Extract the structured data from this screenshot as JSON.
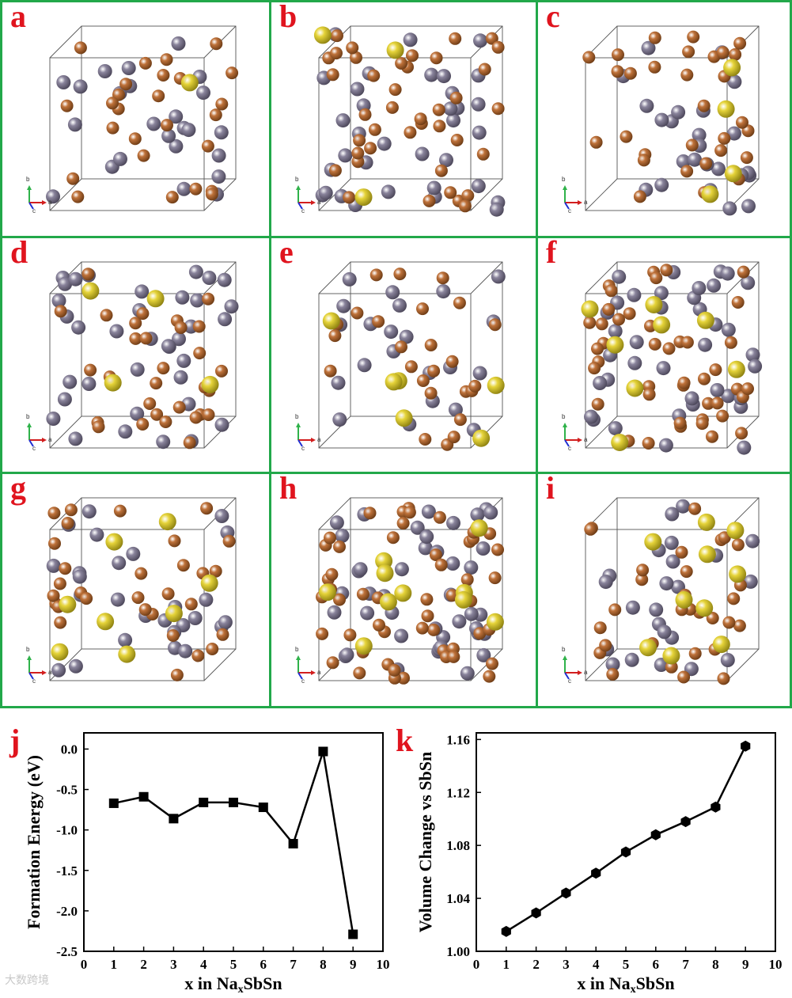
{
  "panels": [
    {
      "label": "a"
    },
    {
      "label": "b"
    },
    {
      "label": "c"
    },
    {
      "label": "d"
    },
    {
      "label": "e"
    },
    {
      "label": "f"
    },
    {
      "label": "g"
    },
    {
      "label": "h"
    },
    {
      "label": "i"
    }
  ],
  "axes_triad": {
    "b": "b",
    "a": "a",
    "c": "c"
  },
  "colors": {
    "frame": "#22a84a",
    "label": "#e0141e",
    "sb": "#c0733b",
    "sn": "#8a849c",
    "na": "#e6d43a"
  },
  "watermark": "大数跨境",
  "chart_data": [
    {
      "label": "j",
      "type": "line",
      "x": [
        1,
        2,
        3,
        4,
        5,
        6,
        7,
        8,
        9
      ],
      "values": [
        -0.67,
        -0.59,
        -0.86,
        -0.66,
        -0.66,
        -0.72,
        -1.17,
        -0.03,
        -2.29
      ],
      "marker": "square",
      "xlabel_pre": "x in Na",
      "xlabel_sub": "x",
      "xlabel_post": "SbSn",
      "ylabel": "Formation Energy (eV)",
      "xlim": [
        0,
        10
      ],
      "ylim": [
        -2.5,
        0.2
      ],
      "xticks": [
        "0",
        "1",
        "2",
        "3",
        "4",
        "5",
        "6",
        "7",
        "8",
        "9",
        "10"
      ],
      "yticks": [
        "0.0",
        "-0.5",
        "-1.0",
        "-1.5",
        "-2.0",
        "-2.5"
      ],
      "ytick_values": [
        0.0,
        -0.5,
        -1.0,
        -1.5,
        -2.0,
        -2.5
      ]
    },
    {
      "label": "k",
      "type": "line",
      "x": [
        1,
        2,
        3,
        4,
        5,
        6,
        7,
        8,
        9
      ],
      "values": [
        1.015,
        1.029,
        1.044,
        1.059,
        1.075,
        1.088,
        1.098,
        1.109,
        1.155
      ],
      "marker": "hexagon",
      "xlabel_pre": "x in Na",
      "xlabel_sub": "x",
      "xlabel_post": "SbSn",
      "ylabel": "Volume Change vs SbSn",
      "xlim": [
        0,
        10
      ],
      "ylim": [
        1.0,
        1.165
      ],
      "xticks": [
        "0",
        "1",
        "2",
        "3",
        "4",
        "5",
        "6",
        "7",
        "8",
        "9",
        "10"
      ],
      "yticks": [
        "1.00",
        "1.04",
        "1.08",
        "1.12",
        "1.16"
      ],
      "ytick_values": [
        1.0,
        1.04,
        1.08,
        1.12,
        1.16
      ]
    }
  ]
}
